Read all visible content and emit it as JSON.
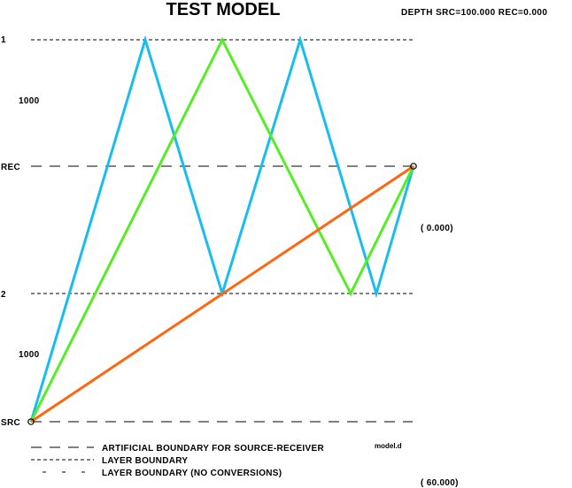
{
  "header": {
    "title": "TEST MODEL",
    "depth_info": "DEPTH SRC=100.000 REC=0.000"
  },
  "layers": {
    "top_label": "1",
    "top_thickness": "1000",
    "rec_label": "REC",
    "mid_label": "2",
    "bottom_thickness": "1000",
    "src_label": "SRC"
  },
  "annotations": {
    "offset_top": "( 0.000)",
    "offset_bottom": "( 60.000)",
    "model_file": "model.d"
  },
  "legend": {
    "items": [
      {
        "label": "ARTIFICIAL BOUNDARY FOR SOURCE-RECEIVER",
        "style": "long-dash"
      },
      {
        "label": "LAYER BOUNDARY",
        "style": "short-dash"
      },
      {
        "label": "LAYER BOUNDARY (NO CONVERSIONS)",
        "style": "sparse-dash"
      }
    ]
  },
  "colors": {
    "ray_cyan": "#17bdf0",
    "ray_green": "#55ee22",
    "ray_orange": "#ff6611",
    "line_black": "#000000",
    "background": "#ffffff"
  }
}
